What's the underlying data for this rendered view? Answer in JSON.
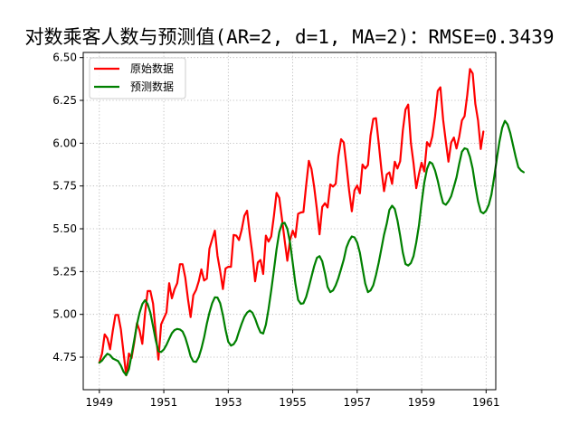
{
  "chart_data": {
    "type": "line",
    "title": "对数乘客人数与预测值(AR=2, d=1, MA=2)：RMSE=0.3439",
    "xlabel": "",
    "ylabel": "",
    "xlim": [
      1948.5,
      1961.3
    ],
    "ylim": [
      4.56,
      6.53
    ],
    "x_ticks": [
      1949,
      1951,
      1953,
      1955,
      1957,
      1959,
      1961
    ],
    "x_tick_labels": [
      "1949",
      "1951",
      "1953",
      "1955",
      "1957",
      "1959",
      "1961"
    ],
    "y_ticks": [
      4.75,
      5.0,
      5.25,
      5.5,
      5.75,
      6.0,
      6.25,
      6.5
    ],
    "y_tick_labels": [
      "4.75",
      "5.00",
      "5.25",
      "5.50",
      "5.75",
      "6.00",
      "6.25",
      "6.50"
    ],
    "grid": true,
    "legend_position": "top-left",
    "series": [
      {
        "name": "原始数据",
        "color": "#ff0000",
        "start": 1949,
        "step": 0.08333,
        "values": [
          4.718,
          4.771,
          4.883,
          4.86,
          4.796,
          4.905,
          4.997,
          4.997,
          4.913,
          4.779,
          4.644,
          4.771,
          4.745,
          4.836,
          4.949,
          4.905,
          4.828,
          5.004,
          5.136,
          5.136,
          5.063,
          4.89,
          4.736,
          4.942,
          4.977,
          5.011,
          5.182,
          5.094,
          5.147,
          5.182,
          5.293,
          5.293,
          5.215,
          5.088,
          4.984,
          5.112,
          5.142,
          5.193,
          5.263,
          5.198,
          5.209,
          5.384,
          5.438,
          5.489,
          5.342,
          5.252,
          5.148,
          5.268,
          5.278,
          5.278,
          5.464,
          5.46,
          5.434,
          5.493,
          5.576,
          5.606,
          5.468,
          5.352,
          5.193,
          5.303,
          5.318,
          5.236,
          5.46,
          5.425,
          5.455,
          5.576,
          5.71,
          5.68,
          5.557,
          5.434,
          5.313,
          5.434,
          5.489,
          5.451,
          5.587,
          5.595,
          5.598,
          5.753,
          5.897,
          5.849,
          5.743,
          5.613,
          5.468,
          5.628,
          5.649,
          5.624,
          5.759,
          5.746,
          5.763,
          5.924,
          6.023,
          6.004,
          5.872,
          5.724,
          5.602,
          5.724,
          5.753,
          5.707,
          5.875,
          5.852,
          5.872,
          6.045,
          6.142,
          6.146,
          6.001,
          5.849,
          5.72,
          5.817,
          5.829,
          5.762,
          5.892,
          5.852,
          5.894,
          6.075,
          6.196,
          6.225,
          6.001,
          5.883,
          5.737,
          5.82,
          5.886,
          5.835,
          6.006,
          5.981,
          6.04,
          6.157,
          6.306,
          6.326,
          6.138,
          6.009,
          5.892,
          6.004,
          6.033,
          5.969,
          6.038,
          6.133,
          6.157,
          6.282,
          6.433,
          6.407,
          6.23,
          6.133,
          5.966,
          6.068
        ]
      },
      {
        "name": "预测数据",
        "color": "#008000",
        "start": 1949,
        "step": 0.08333,
        "values": [
          4.718,
          4.73,
          4.752,
          4.77,
          4.762,
          4.742,
          4.735,
          4.727,
          4.701,
          4.665,
          4.645,
          4.68,
          4.762,
          4.85,
          4.942,
          5.01,
          5.06,
          5.083,
          5.06,
          5.01,
          4.93,
          4.848,
          4.785,
          4.78,
          4.795,
          4.822,
          4.857,
          4.89,
          4.908,
          4.915,
          4.912,
          4.9,
          4.865,
          4.812,
          4.755,
          4.725,
          4.722,
          4.75,
          4.8,
          4.865,
          4.945,
          5.01,
          5.065,
          5.1,
          5.098,
          5.065,
          4.995,
          4.91,
          4.84,
          4.818,
          4.825,
          4.85,
          4.9,
          4.945,
          4.985,
          5.01,
          5.022,
          5.01,
          4.975,
          4.93,
          4.895,
          4.888,
          4.94,
          5.03,
          5.14,
          5.26,
          5.38,
          5.48,
          5.53,
          5.535,
          5.5,
          5.42,
          5.3,
          5.18,
          5.085,
          5.062,
          5.065,
          5.102,
          5.16,
          5.22,
          5.282,
          5.33,
          5.34,
          5.31,
          5.24,
          5.16,
          5.13,
          5.14,
          5.17,
          5.212,
          5.265,
          5.32,
          5.39,
          5.43,
          5.455,
          5.45,
          5.42,
          5.36,
          5.27,
          5.18,
          5.13,
          5.14,
          5.17,
          5.23,
          5.302,
          5.382,
          5.465,
          5.53,
          5.61,
          5.635,
          5.615,
          5.55,
          5.46,
          5.36,
          5.294,
          5.285,
          5.3,
          5.34,
          5.42,
          5.52,
          5.65,
          5.77,
          5.85,
          5.89,
          5.88,
          5.84,
          5.78,
          5.71,
          5.65,
          5.64,
          5.66,
          5.69,
          5.745,
          5.8,
          5.88,
          5.95,
          5.97,
          5.965,
          5.92,
          5.85,
          5.75,
          5.66,
          5.6,
          5.59,
          5.605,
          5.64,
          5.7,
          5.8,
          5.91,
          6.01,
          6.09,
          6.13,
          6.11,
          6.06,
          5.99,
          5.92,
          5.86,
          5.84,
          5.83
        ]
      }
    ]
  }
}
